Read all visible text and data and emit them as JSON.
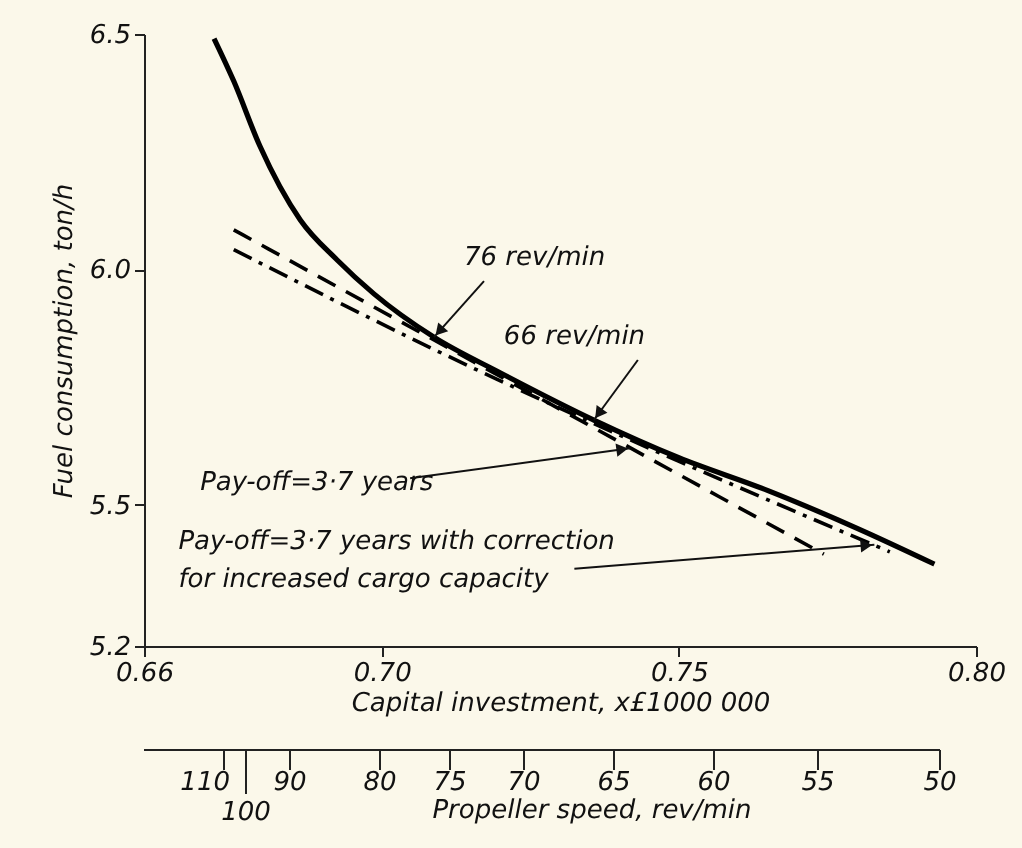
{
  "chart_data": {
    "type": "line",
    "xlabel": "Capital investment, x£1000 000",
    "ylabel": "Fuel consumption, ton/h",
    "x2label": "Propeller speed, rev/min",
    "xlim": [
      0.66,
      0.8
    ],
    "xticks": [
      {
        "value": 0.66,
        "label": "0.66"
      },
      {
        "value": 0.7,
        "label": "0.70"
      },
      {
        "value": 0.75,
        "label": "0.75"
      },
      {
        "value": 0.8,
        "label": "0.80"
      }
    ],
    "ylim": [
      5.2,
      6.5
    ],
    "yticks": [
      {
        "value": 5.2,
        "label": "5.2"
      },
      {
        "value": 5.5,
        "label": "5.5"
      },
      {
        "value": 6.0,
        "label": "6.0"
      },
      {
        "value": 6.5,
        "label": "6.5"
      }
    ],
    "grid": false,
    "series": [
      {
        "color": "#000000",
        "line_style": "solid",
        "x": [
          0.6718,
          0.6751,
          0.6795,
          0.6863,
          0.6925,
          0.6987,
          0.7088,
          0.72,
          0.7357,
          0.75,
          0.765,
          0.78,
          0.793
        ],
        "values": [
          6.49,
          6.4,
          6.262,
          6.105,
          6.02,
          5.948,
          5.856,
          5.78,
          5.68,
          5.6,
          5.53,
          5.45,
          5.374
        ]
      },
      {
        "color": "#000000",
        "line_style": "dashed",
        "x": [
          0.6751,
          0.7088,
          0.7744
        ],
        "values": [
          6.084,
          5.85,
          5.395
        ]
      },
      {
        "color": "#000000",
        "line_style": "dashdot",
        "x": [
          0.6751,
          0.7088,
          0.7855
        ],
        "values": [
          6.042,
          5.83,
          5.4
        ]
      }
    ],
    "annotations": [
      {
        "text": "76 rev/min",
        "x": 0.7088,
        "y": 5.856
      },
      {
        "text": "66 rev/min",
        "x": 0.7357,
        "y": 5.68
      },
      {
        "text": "Pay-off=3·7 years",
        "x": 0.7418,
        "y": 5.62
      },
      {
        "text": "Pay-off=3·7 years with correction\nfor increased cargo capacity",
        "x": 0.7829,
        "y": 5.415
      },
      "110",
      "100",
      "90",
      "80",
      "75",
      "70",
      "65",
      "60",
      "55",
      "50"
    ]
  }
}
